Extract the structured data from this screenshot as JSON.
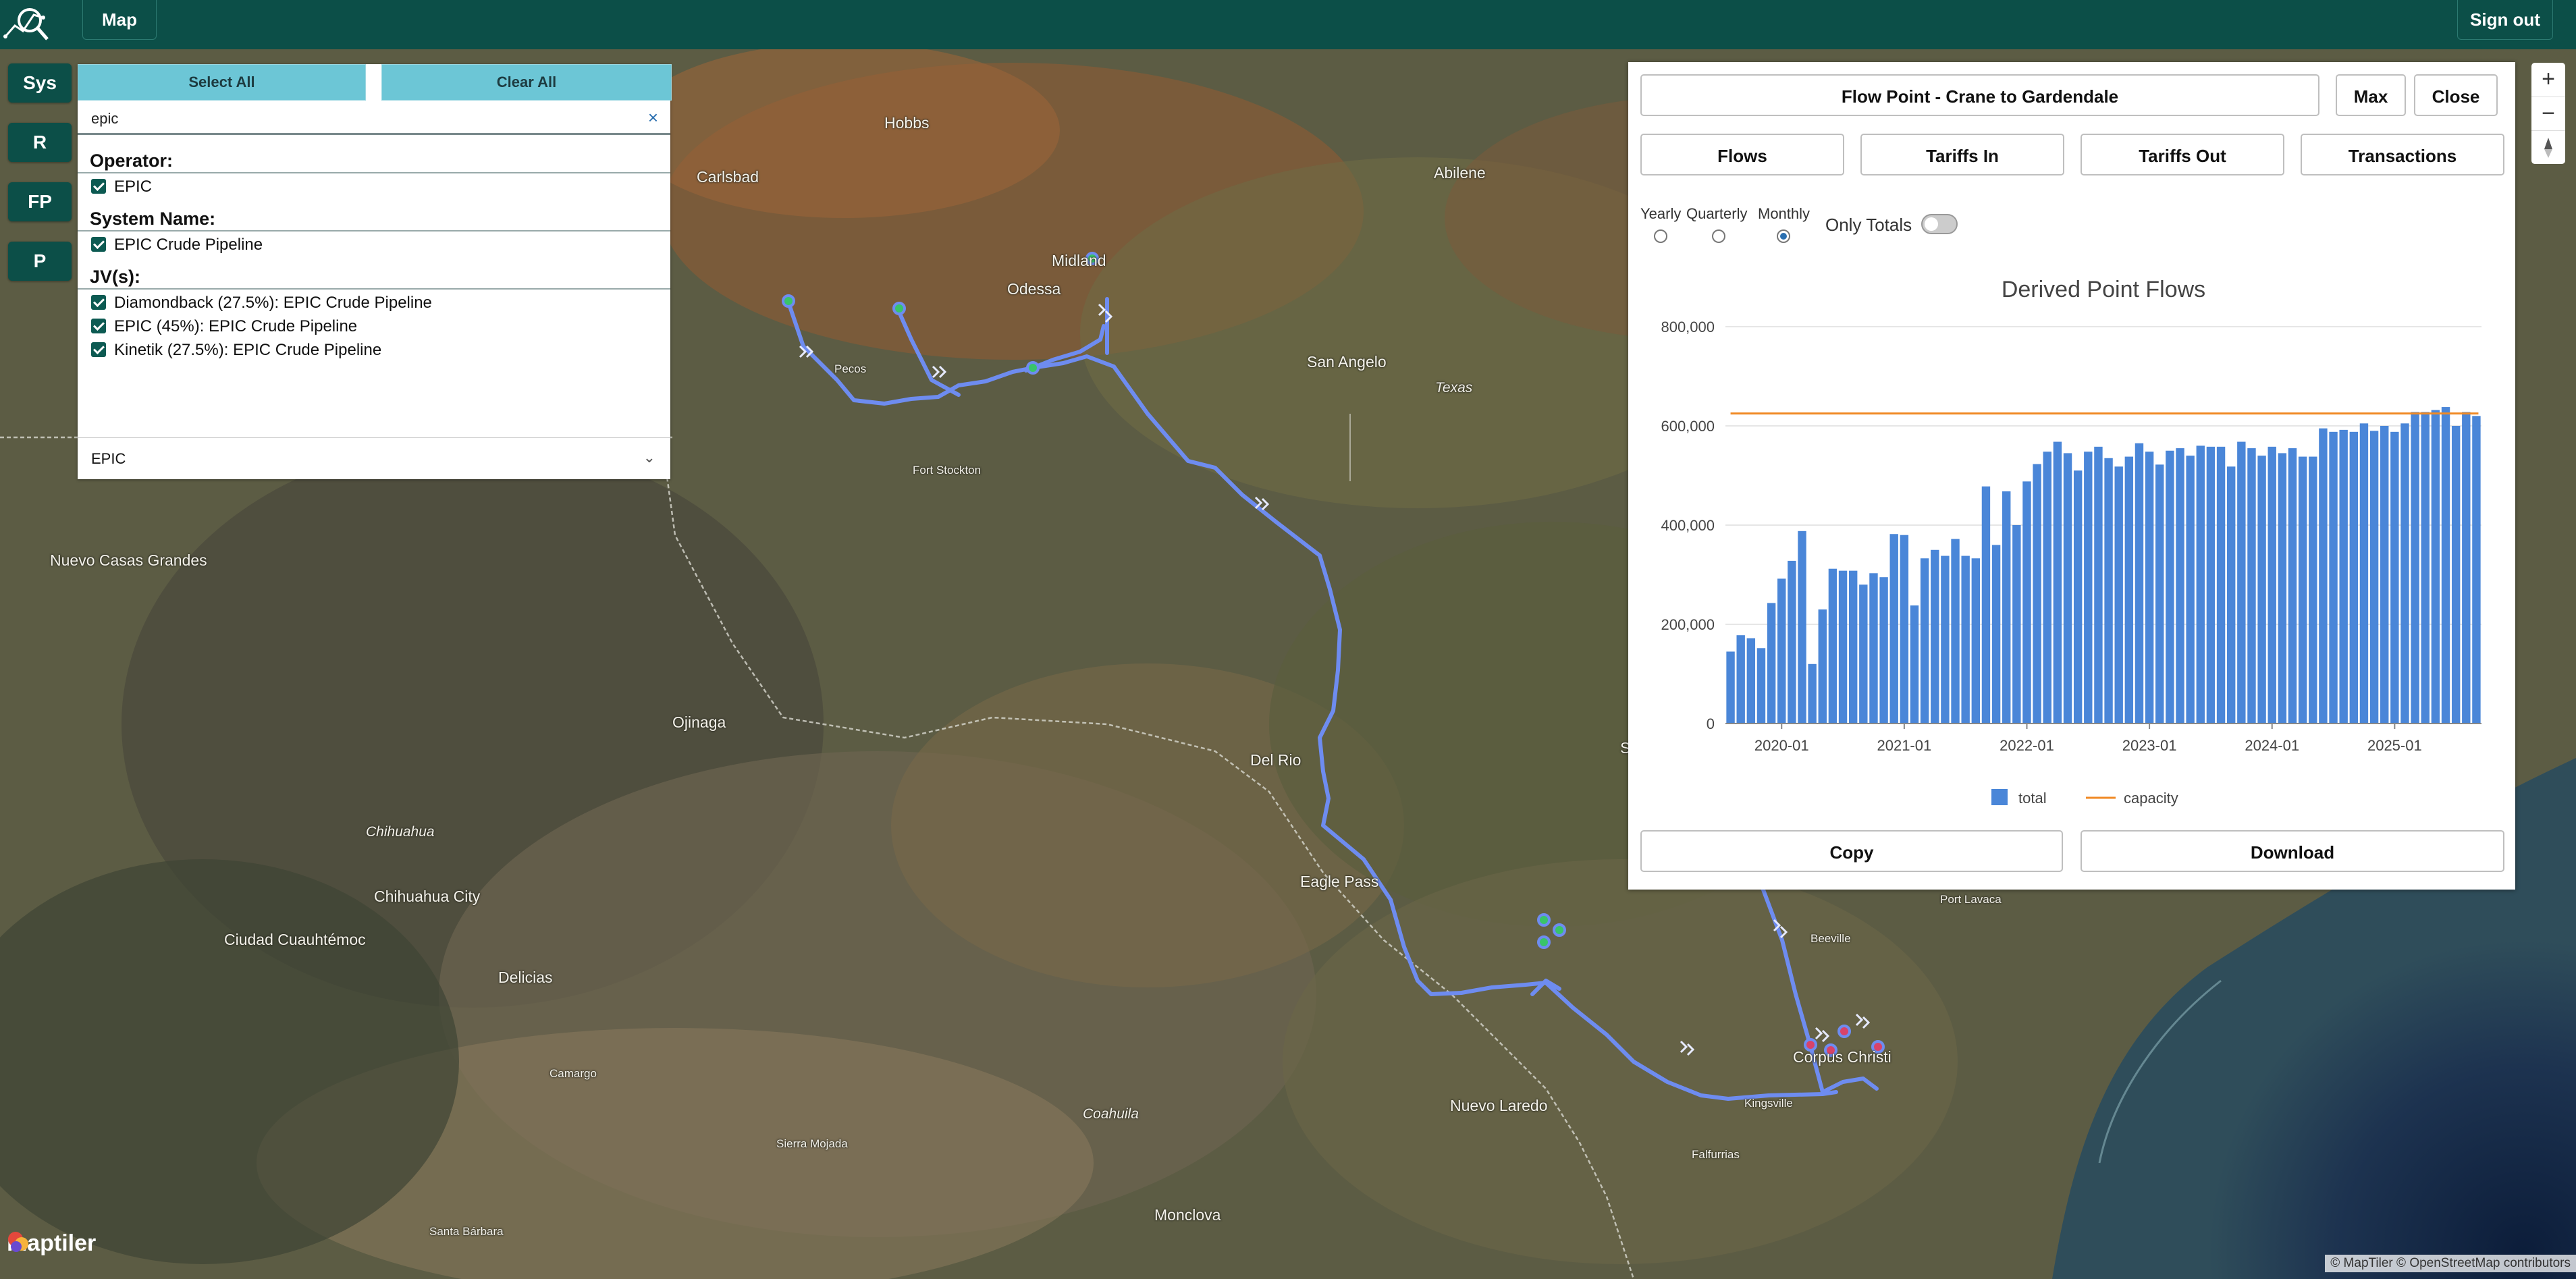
{
  "header": {
    "map_label": "Map",
    "signout_label": "Sign out"
  },
  "side_buttons": {
    "sys": "Sys",
    "r": "R",
    "fp": "FP",
    "p": "P"
  },
  "filter": {
    "select_all": "Select All",
    "clear_all": "Clear All",
    "search_value": "epic",
    "clear_icon": "×",
    "operator_heading": "Operator:",
    "operator_items": [
      "EPIC"
    ],
    "system_heading": "System Name:",
    "system_items": [
      "EPIC Crude Pipeline"
    ],
    "jv_heading": "JV(s):",
    "jv_items": [
      "Diamondback (27.5%): EPIC Crude Pipeline",
      "EPIC (45%): EPIC Crude Pipeline",
      "Kinetik (27.5%): EPIC Crude Pipeline"
    ],
    "select_value": "EPIC",
    "select_chevron": "⌄"
  },
  "map": {
    "cities": [
      "Hobbs",
      "Carlsbad",
      "Abilene",
      "Midland",
      "Odessa",
      "Pecos",
      "San Angelo",
      "Texas",
      "Fort Stockton",
      "Nuevo Casas Grandes",
      "Ojinaga",
      "Del Rio",
      "Chihuahua",
      "Chihuahua City",
      "Ciudad Cuauhtémoc",
      "Delicias",
      "Eagle Pass",
      "Camargo",
      "Coahuila",
      "Sierra Mojada",
      "Nuevo Laredo",
      "Monclova",
      "Santa Bárbara",
      "Beeville",
      "Port Lavaca",
      "Corpus Christi",
      "Kingsville",
      "Falfurrias",
      "S"
    ],
    "attribution": "© MapTiler © OpenStreetMap contributors",
    "logo_text": "maptiler",
    "zoom_in": "+",
    "zoom_out": "−",
    "compass_icon": "compass-icon"
  },
  "flow_panel": {
    "title": "Flow Point - Crane to Gardendale",
    "max_label": "Max",
    "close_label": "Close",
    "tabs": [
      "Flows",
      "Tariffs In",
      "Tariffs Out",
      "Transactions"
    ],
    "period_options": [
      "Yearly",
      "Quarterly",
      "Monthly"
    ],
    "period_selected": "Monthly",
    "only_totals_label": "Only Totals",
    "only_totals_on": false,
    "copy_label": "Copy",
    "download_label": "Download",
    "colors": {
      "bars": "#4a86d8",
      "capacity": "#f08a24"
    }
  },
  "chart_data": {
    "type": "bar",
    "title": "Derived Point Flows",
    "xlabel": "",
    "ylabel": "",
    "ylim": [
      0,
      800000
    ],
    "yticks": [
      "0",
      "200,000",
      "400,000",
      "600,000",
      "800,000"
    ],
    "xticks": [
      "2020-01",
      "2021-01",
      "2022-01",
      "2023-01",
      "2024-01",
      "2025-01"
    ],
    "legend": [
      "total",
      "capacity"
    ],
    "legend_position": "bottom",
    "start_month": "2019-08",
    "series": [
      {
        "name": "total",
        "values": [
          145000,
          178000,
          172000,
          152000,
          243000,
          292000,
          328000,
          388000,
          120000,
          230000,
          312000,
          308000,
          308000,
          280000,
          303000,
          295000,
          382000,
          380000,
          238000,
          333000,
          350000,
          338000,
          372000,
          338000,
          333000,
          478000,
          360000,
          468000,
          400000,
          488000,
          523000,
          548000,
          568000,
          545000,
          510000,
          548000,
          558000,
          535000,
          518000,
          538000,
          565000,
          548000,
          522000,
          550000,
          555000,
          540000,
          560000,
          558000,
          558000,
          518000,
          568000,
          555000,
          540000,
          558000,
          545000,
          555000,
          538000,
          538000,
          595000,
          588000,
          592000,
          588000,
          605000,
          590000,
          600000,
          588000,
          605000,
          628000,
          628000,
          632000,
          638000,
          600000,
          628000,
          620000
        ]
      },
      {
        "name": "capacity",
        "values": [
          625000
        ]
      }
    ]
  }
}
